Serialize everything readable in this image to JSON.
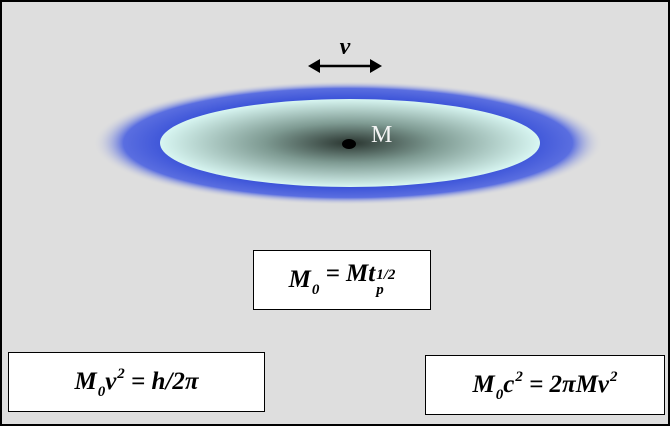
{
  "diagram": {
    "velocity_label": "v",
    "mass_label": "M"
  },
  "formulas": [
    {
      "runs": [
        {
          "base": "M",
          "sub": "0"
        },
        {
          "base": " = Mt",
          "sub": "p",
          "sup": "1/2"
        }
      ]
    },
    {
      "runs": [
        {
          "base": "M",
          "sub": "0"
        },
        {
          "base": "v",
          "sup": "2"
        },
        {
          "base": " = h/2π"
        }
      ]
    },
    {
      "runs": [
        {
          "base": "M",
          "sub": "0"
        },
        {
          "base": "c",
          "sup": "2"
        },
        {
          "base": " = 2πMv",
          "sup": "2"
        }
      ]
    }
  ]
}
